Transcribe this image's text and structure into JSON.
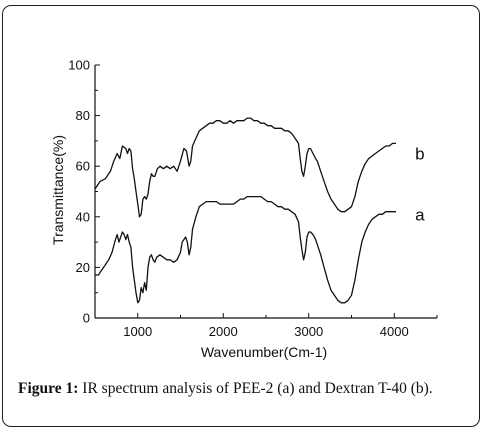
{
  "caption": {
    "label": "Figure 1:",
    "text": " IR spectrum analysis of PEE-2 (a) and Dextran T-40 (b)."
  },
  "chart_data": {
    "type": "line",
    "xlabel": "Wavenumber(Cm-1)",
    "ylabel": "Transmittance(%)",
    "xlim": [
      500,
      4500
    ],
    "ylim": [
      0,
      100
    ],
    "xticks": [
      1000,
      2000,
      3000,
      4000
    ],
    "yticks": [
      0,
      20,
      40,
      60,
      80,
      100
    ],
    "grid": false,
    "series": [
      {
        "name": "b",
        "points": [
          [
            500,
            51
          ],
          [
            560,
            54
          ],
          [
            620,
            55
          ],
          [
            680,
            58
          ],
          [
            720,
            62
          ],
          [
            760,
            65
          ],
          [
            790,
            63
          ],
          [
            820,
            68
          ],
          [
            860,
            67
          ],
          [
            880,
            65
          ],
          [
            900,
            67
          ],
          [
            920,
            66
          ],
          [
            940,
            59
          ],
          [
            960,
            55
          ],
          [
            980,
            50
          ],
          [
            1000,
            45
          ],
          [
            1020,
            40
          ],
          [
            1040,
            41
          ],
          [
            1060,
            47
          ],
          [
            1080,
            48
          ],
          [
            1100,
            47
          ],
          [
            1120,
            49
          ],
          [
            1140,
            54
          ],
          [
            1160,
            57
          ],
          [
            1180,
            56
          ],
          [
            1200,
            56
          ],
          [
            1230,
            59
          ],
          [
            1260,
            60
          ],
          [
            1300,
            59
          ],
          [
            1340,
            60
          ],
          [
            1380,
            59
          ],
          [
            1420,
            60
          ],
          [
            1460,
            58
          ],
          [
            1500,
            62
          ],
          [
            1540,
            67
          ],
          [
            1570,
            66
          ],
          [
            1600,
            60
          ],
          [
            1620,
            62
          ],
          [
            1640,
            68
          ],
          [
            1680,
            71
          ],
          [
            1720,
            74
          ],
          [
            1760,
            75
          ],
          [
            1800,
            76
          ],
          [
            1840,
            77
          ],
          [
            1880,
            77
          ],
          [
            1920,
            78
          ],
          [
            1960,
            78
          ],
          [
            2000,
            77
          ],
          [
            2040,
            77
          ],
          [
            2080,
            78
          ],
          [
            2120,
            77
          ],
          [
            2160,
            78
          ],
          [
            2200,
            78
          ],
          [
            2240,
            78
          ],
          [
            2280,
            79
          ],
          [
            2320,
            79
          ],
          [
            2360,
            78
          ],
          [
            2400,
            78
          ],
          [
            2440,
            77
          ],
          [
            2480,
            77
          ],
          [
            2520,
            76
          ],
          [
            2560,
            76
          ],
          [
            2600,
            75
          ],
          [
            2640,
            75
          ],
          [
            2680,
            75
          ],
          [
            2720,
            74
          ],
          [
            2760,
            74
          ],
          [
            2800,
            73
          ],
          [
            2840,
            71
          ],
          [
            2880,
            69
          ],
          [
            2900,
            63
          ],
          [
            2920,
            58
          ],
          [
            2940,
            56
          ],
          [
            2960,
            60
          ],
          [
            2980,
            65
          ],
          [
            3000,
            67
          ],
          [
            3020,
            67
          ],
          [
            3050,
            65
          ],
          [
            3080,
            63
          ],
          [
            3100,
            62
          ],
          [
            3140,
            58
          ],
          [
            3180,
            54
          ],
          [
            3220,
            50
          ],
          [
            3260,
            47
          ],
          [
            3300,
            45
          ],
          [
            3340,
            43
          ],
          [
            3380,
            42
          ],
          [
            3420,
            42
          ],
          [
            3460,
            43
          ],
          [
            3500,
            44
          ],
          [
            3540,
            48
          ],
          [
            3580,
            54
          ],
          [
            3620,
            58
          ],
          [
            3660,
            61
          ],
          [
            3700,
            63
          ],
          [
            3740,
            64
          ],
          [
            3780,
            65
          ],
          [
            3820,
            66
          ],
          [
            3860,
            67
          ],
          [
            3900,
            68
          ],
          [
            3940,
            68
          ],
          [
            3980,
            69
          ],
          [
            4020,
            69
          ]
        ]
      },
      {
        "name": "a",
        "points": [
          [
            500,
            17
          ],
          [
            540,
            17
          ],
          [
            580,
            19
          ],
          [
            620,
            21
          ],
          [
            660,
            23
          ],
          [
            700,
            26
          ],
          [
            730,
            30
          ],
          [
            760,
            33
          ],
          [
            780,
            30
          ],
          [
            800,
            32
          ],
          [
            820,
            34
          ],
          [
            840,
            33
          ],
          [
            860,
            31
          ],
          [
            880,
            33
          ],
          [
            900,
            30
          ],
          [
            920,
            28
          ],
          [
            940,
            20
          ],
          [
            960,
            15
          ],
          [
            980,
            10
          ],
          [
            1000,
            6
          ],
          [
            1020,
            7
          ],
          [
            1040,
            12
          ],
          [
            1060,
            10
          ],
          [
            1080,
            14
          ],
          [
            1100,
            11
          ],
          [
            1120,
            20
          ],
          [
            1140,
            24
          ],
          [
            1160,
            25
          ],
          [
            1180,
            23
          ],
          [
            1200,
            22
          ],
          [
            1220,
            24
          ],
          [
            1260,
            25
          ],
          [
            1300,
            24
          ],
          [
            1340,
            23
          ],
          [
            1380,
            23
          ],
          [
            1420,
            22
          ],
          [
            1460,
            23
          ],
          [
            1500,
            26
          ],
          [
            1520,
            30
          ],
          [
            1560,
            32
          ],
          [
            1580,
            30
          ],
          [
            1600,
            25
          ],
          [
            1620,
            28
          ],
          [
            1640,
            35
          ],
          [
            1680,
            40
          ],
          [
            1720,
            44
          ],
          [
            1760,
            45
          ],
          [
            1800,
            46
          ],
          [
            1840,
            46
          ],
          [
            1880,
            46
          ],
          [
            1920,
            46
          ],
          [
            1960,
            45
          ],
          [
            2000,
            45
          ],
          [
            2040,
            45
          ],
          [
            2080,
            45
          ],
          [
            2120,
            45
          ],
          [
            2160,
            46
          ],
          [
            2200,
            47
          ],
          [
            2240,
            47
          ],
          [
            2280,
            48
          ],
          [
            2320,
            48
          ],
          [
            2360,
            48
          ],
          [
            2400,
            48
          ],
          [
            2440,
            48
          ],
          [
            2480,
            47
          ],
          [
            2520,
            46
          ],
          [
            2560,
            46
          ],
          [
            2600,
            45
          ],
          [
            2640,
            44
          ],
          [
            2680,
            44
          ],
          [
            2720,
            43
          ],
          [
            2760,
            43
          ],
          [
            2800,
            42
          ],
          [
            2840,
            41
          ],
          [
            2880,
            38
          ],
          [
            2900,
            32
          ],
          [
            2920,
            27
          ],
          [
            2940,
            23
          ],
          [
            2960,
            26
          ],
          [
            2980,
            32
          ],
          [
            3000,
            34
          ],
          [
            3020,
            34
          ],
          [
            3050,
            33
          ],
          [
            3080,
            31
          ],
          [
            3100,
            29
          ],
          [
            3140,
            25
          ],
          [
            3180,
            20
          ],
          [
            3220,
            15
          ],
          [
            3260,
            11
          ],
          [
            3300,
            9
          ],
          [
            3340,
            7
          ],
          [
            3380,
            6
          ],
          [
            3420,
            6
          ],
          [
            3460,
            7
          ],
          [
            3500,
            9
          ],
          [
            3540,
            15
          ],
          [
            3580,
            23
          ],
          [
            3620,
            30
          ],
          [
            3660,
            34
          ],
          [
            3700,
            37
          ],
          [
            3740,
            39
          ],
          [
            3780,
            40
          ],
          [
            3820,
            41
          ],
          [
            3860,
            41
          ],
          [
            3900,
            42
          ],
          [
            3940,
            42
          ],
          [
            3980,
            42
          ],
          [
            4020,
            42
          ]
        ]
      }
    ],
    "series_labels": [
      {
        "name": "b",
        "x": 4300,
        "y": 65
      },
      {
        "name": "a",
        "x": 4300,
        "y": 41
      }
    ],
    "line_color": "#111111"
  }
}
